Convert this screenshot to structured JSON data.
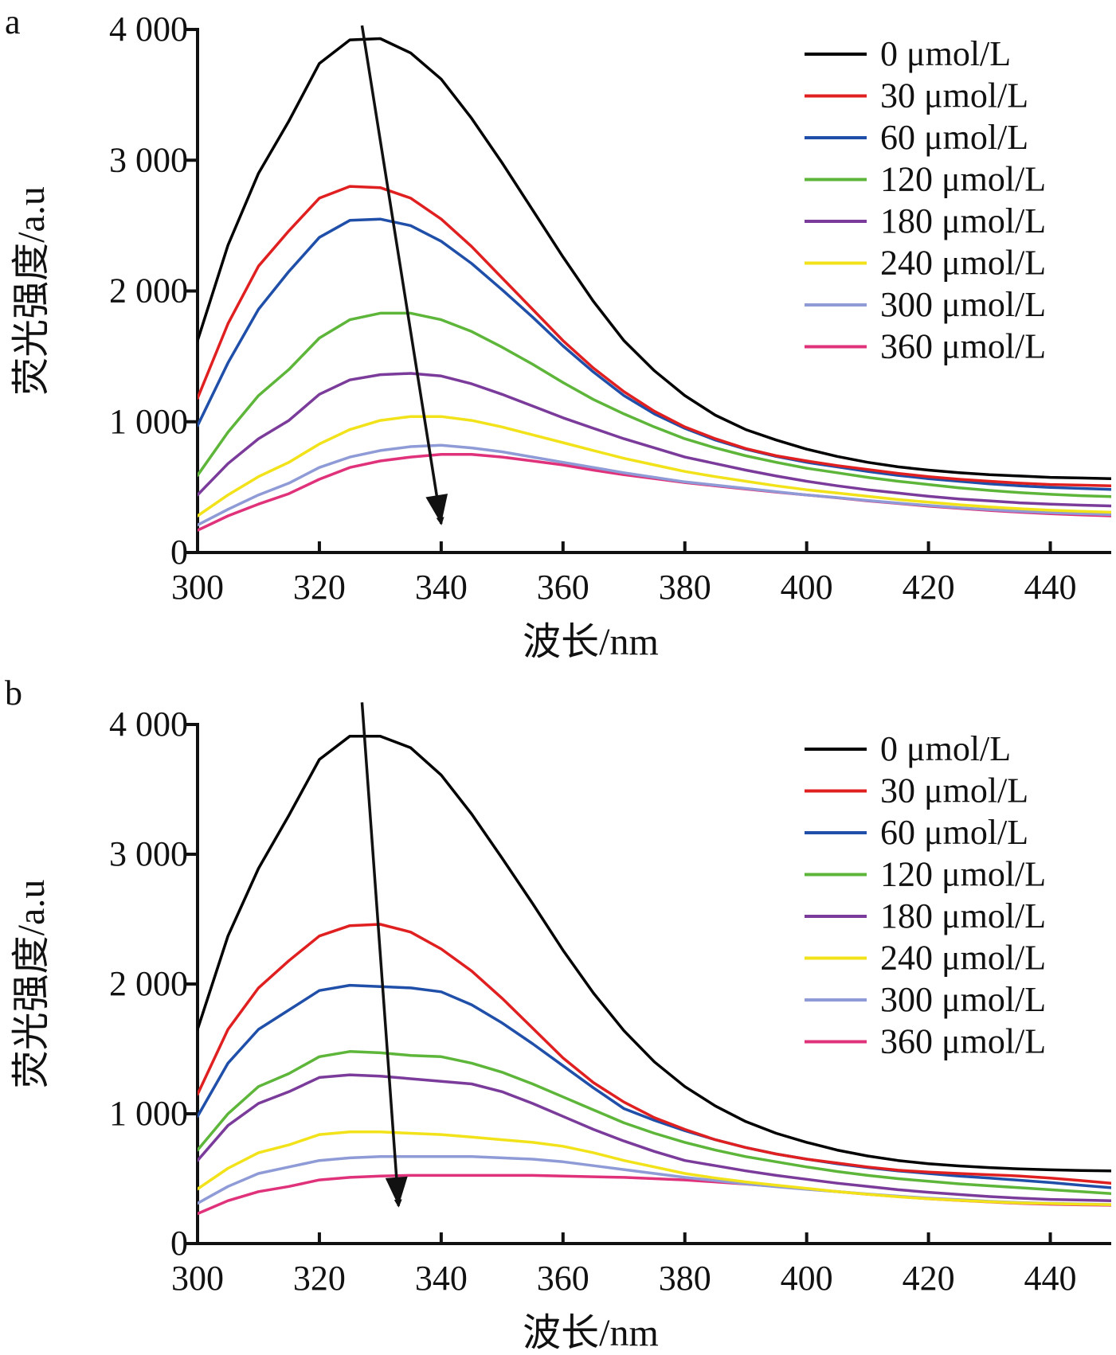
{
  "chart_data": [
    {
      "type": "line",
      "panel_label": "a",
      "xlabel": "波长/nm",
      "ylabel": "荧光强度/a.u",
      "xlim": [
        300,
        450
      ],
      "ylim": [
        0,
        4000
      ],
      "x_ticks": [
        300,
        320,
        340,
        360,
        380,
        400,
        420,
        440
      ],
      "x_tick_labels": [
        "300",
        "320",
        "340",
        "360",
        "380",
        "400",
        "420",
        "440"
      ],
      "y_ticks": [
        0,
        1000,
        2000,
        3000,
        4000
      ],
      "y_tick_labels": [
        "0",
        "1 000",
        "2 000",
        "3 000",
        "4 000"
      ],
      "grid": false,
      "legend_position": "top-right",
      "x": [
        300,
        305,
        310,
        315,
        320,
        325,
        330,
        335,
        340,
        345,
        350,
        355,
        360,
        365,
        370,
        375,
        380,
        385,
        390,
        395,
        400,
        405,
        410,
        415,
        420,
        425,
        430,
        435,
        440,
        445,
        450
      ],
      "series": [
        {
          "name": "0 μmol/L",
          "color": "#000000",
          "values": [
            1620,
            2350,
            2900,
            3300,
            3740,
            3920,
            3930,
            3820,
            3620,
            3320,
            2980,
            2620,
            2260,
            1920,
            1620,
            1390,
            1200,
            1050,
            940,
            860,
            790,
            735,
            690,
            655,
            630,
            610,
            595,
            585,
            575,
            570,
            565
          ]
        },
        {
          "name": "30 μmol/L",
          "color": "#e02020",
          "values": [
            1180,
            1750,
            2190,
            2460,
            2710,
            2800,
            2790,
            2710,
            2550,
            2340,
            2100,
            1860,
            1620,
            1410,
            1230,
            1080,
            960,
            870,
            795,
            740,
            700,
            665,
            635,
            605,
            580,
            560,
            545,
            530,
            520,
            515,
            510
          ]
        },
        {
          "name": "60 μmol/L",
          "color": "#1f4fa8",
          "values": [
            970,
            1450,
            1860,
            2150,
            2410,
            2540,
            2550,
            2500,
            2380,
            2210,
            2010,
            1800,
            1580,
            1380,
            1200,
            1060,
            950,
            860,
            790,
            735,
            690,
            655,
            620,
            590,
            565,
            545,
            525,
            510,
            498,
            490,
            482
          ]
        },
        {
          "name": "120 μmol/L",
          "color": "#5db63a",
          "values": [
            590,
            920,
            1200,
            1400,
            1640,
            1780,
            1830,
            1830,
            1780,
            1690,
            1570,
            1440,
            1300,
            1170,
            1060,
            960,
            870,
            800,
            740,
            690,
            645,
            610,
            575,
            545,
            520,
            495,
            475,
            458,
            445,
            435,
            428
          ]
        },
        {
          "name": "180 μmol/L",
          "color": "#7a3b9a",
          "values": [
            440,
            680,
            870,
            1010,
            1210,
            1320,
            1360,
            1370,
            1350,
            1290,
            1210,
            1120,
            1030,
            950,
            870,
            800,
            730,
            680,
            630,
            585,
            545,
            510,
            480,
            455,
            430,
            410,
            395,
            380,
            370,
            362,
            356
          ]
        },
        {
          "name": "240 μmol/L",
          "color": "#f2e21a",
          "values": [
            280,
            440,
            580,
            690,
            830,
            940,
            1010,
            1040,
            1040,
            1010,
            960,
            900,
            840,
            780,
            720,
            670,
            620,
            580,
            545,
            510,
            480,
            455,
            430,
            405,
            385,
            365,
            348,
            335,
            323,
            315,
            308
          ]
        },
        {
          "name": "300 μmol/L",
          "color": "#8e9bd6",
          "values": [
            210,
            330,
            440,
            530,
            650,
            730,
            780,
            810,
            820,
            800,
            770,
            730,
            690,
            650,
            610,
            575,
            540,
            515,
            490,
            465,
            440,
            420,
            398,
            378,
            360,
            343,
            328,
            315,
            305,
            297,
            290
          ]
        },
        {
          "name": "360 μmol/L",
          "color": "#e0327a",
          "values": [
            170,
            280,
            370,
            450,
            560,
            650,
            700,
            730,
            750,
            750,
            730,
            700,
            670,
            630,
            595,
            565,
            535,
            510,
            485,
            462,
            440,
            418,
            395,
            375,
            355,
            338,
            322,
            308,
            297,
            288,
            280
          ]
        }
      ],
      "arrow": {
        "from": [
          327,
          4030
        ],
        "to": [
          340,
          220
        ]
      }
    },
    {
      "type": "line",
      "panel_label": "b",
      "xlabel": "波长/nm",
      "ylabel": "荧光强度/a.u",
      "xlim": [
        300,
        450
      ],
      "ylim": [
        0,
        4000
      ],
      "x_ticks": [
        300,
        320,
        340,
        360,
        380,
        400,
        420,
        440
      ],
      "x_tick_labels": [
        "300",
        "320",
        "340",
        "360",
        "380",
        "400",
        "420",
        "440"
      ],
      "y_ticks": [
        0,
        1000,
        2000,
        3000,
        4000
      ],
      "y_tick_labels": [
        "0",
        "1 000",
        "2 000",
        "3 000",
        "4 000"
      ],
      "grid": false,
      "legend_position": "top-right",
      "x": [
        300,
        305,
        310,
        315,
        320,
        325,
        330,
        335,
        340,
        345,
        350,
        355,
        360,
        365,
        370,
        375,
        380,
        385,
        390,
        395,
        400,
        405,
        410,
        415,
        420,
        425,
        430,
        435,
        440,
        445,
        450
      ],
      "series": [
        {
          "name": "0 μmol/L",
          "color": "#000000",
          "values": [
            1650,
            2370,
            2890,
            3300,
            3730,
            3910,
            3910,
            3820,
            3610,
            3310,
            2970,
            2620,
            2260,
            1930,
            1640,
            1400,
            1210,
            1060,
            940,
            850,
            780,
            720,
            675,
            640,
            615,
            598,
            585,
            575,
            568,
            563,
            560
          ]
        },
        {
          "name": "30 μmol/L",
          "color": "#e02020",
          "values": [
            1150,
            1650,
            1970,
            2180,
            2370,
            2450,
            2460,
            2400,
            2270,
            2100,
            1890,
            1660,
            1430,
            1240,
            1090,
            970,
            880,
            800,
            740,
            690,
            650,
            620,
            590,
            565,
            550,
            540,
            530,
            520,
            505,
            485,
            465
          ]
        },
        {
          "name": "60 μmol/L",
          "color": "#1f4fa8",
          "values": [
            980,
            1390,
            1650,
            1800,
            1950,
            1990,
            1980,
            1970,
            1940,
            1840,
            1700,
            1540,
            1370,
            1200,
            1040,
            950,
            870,
            800,
            740,
            690,
            650,
            615,
            585,
            560,
            540,
            520,
            505,
            488,
            470,
            450,
            430
          ]
        },
        {
          "name": "120 μmol/L",
          "color": "#5db63a",
          "values": [
            720,
            1000,
            1210,
            1310,
            1440,
            1480,
            1470,
            1450,
            1440,
            1390,
            1320,
            1230,
            1130,
            1030,
            930,
            850,
            780,
            720,
            670,
            630,
            590,
            555,
            525,
            500,
            480,
            460,
            445,
            430,
            415,
            400,
            385
          ]
        },
        {
          "name": "180 μmol/L",
          "color": "#7a3b9a",
          "values": [
            640,
            910,
            1080,
            1170,
            1280,
            1300,
            1290,
            1270,
            1250,
            1230,
            1170,
            1080,
            980,
            880,
            790,
            710,
            640,
            600,
            560,
            525,
            495,
            465,
            440,
            415,
            395,
            378,
            362,
            350,
            340,
            335,
            330
          ]
        },
        {
          "name": "240 μmol/L",
          "color": "#f2e21a",
          "values": [
            420,
            580,
            700,
            760,
            840,
            860,
            860,
            850,
            840,
            820,
            800,
            780,
            750,
            700,
            640,
            590,
            540,
            505,
            475,
            450,
            425,
            400,
            380,
            360,
            345,
            333,
            322,
            313,
            308,
            303,
            300
          ]
        },
        {
          "name": "300 μmol/L",
          "color": "#8e9bd6",
          "values": [
            310,
            440,
            540,
            590,
            640,
            660,
            670,
            670,
            670,
            670,
            660,
            650,
            630,
            600,
            570,
            540,
            510,
            485,
            460,
            438,
            418,
            400,
            382,
            365,
            350,
            338,
            325,
            316,
            310,
            305,
            300
          ]
        },
        {
          "name": "360 μmol/L",
          "color": "#e0327a",
          "values": [
            230,
            330,
            400,
            440,
            490,
            510,
            520,
            525,
            525,
            525,
            525,
            525,
            520,
            515,
            510,
            500,
            490,
            475,
            458,
            440,
            420,
            400,
            380,
            362,
            345,
            332,
            320,
            310,
            303,
            298,
            295
          ]
        }
      ],
      "arrow": {
        "from": [
          327,
          4170
        ],
        "to": [
          333,
          290
        ]
      }
    }
  ]
}
